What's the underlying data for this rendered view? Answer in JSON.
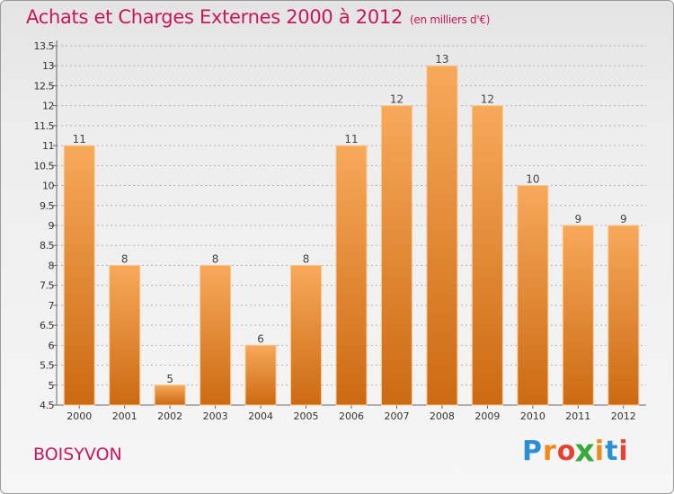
{
  "chart_data": {
    "type": "bar",
    "title": "Achats et Charges Externes 2000 à 2012",
    "subtitle": "(en milliers d'€)",
    "categories": [
      "2000",
      "2001",
      "2002",
      "2003",
      "2004",
      "2005",
      "2006",
      "2007",
      "2008",
      "2009",
      "2010",
      "2011",
      "2012"
    ],
    "values": [
      11,
      8,
      5,
      8,
      6,
      8,
      11,
      12,
      13,
      12,
      10,
      9,
      9
    ],
    "data_labels": [
      "11",
      "8",
      "5",
      "8",
      "6",
      "8",
      "11",
      "12",
      "13",
      "12",
      "10",
      "9",
      "9"
    ],
    "ylim": [
      4.5,
      13.5
    ],
    "y_ticks": [
      4.5,
      5,
      5.5,
      6,
      6.5,
      7,
      7.5,
      8,
      8.5,
      9,
      9.5,
      10,
      10.5,
      11,
      11.5,
      12,
      12.5,
      13,
      13.5
    ],
    "y_tick_labels": [
      "4.5",
      "5",
      "5.5",
      "6",
      "6.5",
      "7",
      "7.5",
      "8",
      "8.5",
      "9",
      "9.5",
      "10",
      "10.5",
      "11",
      "11.5",
      "12",
      "12.5",
      "13",
      "13.5"
    ],
    "grid": "horizontal dotted",
    "legend": "none",
    "colors": {
      "bar_top": "#f7a95a",
      "bar_bottom": "#cc6a12",
      "title": "#c8165a",
      "grid": "#b3b3b3"
    }
  },
  "footer": {
    "commune": "BOISYVON",
    "logo_letters": [
      "P",
      "r",
      "o",
      "x",
      "i",
      "t",
      "i"
    ],
    "logo_colors": [
      "#2b8fd6",
      "#f08a1c",
      "#e8422e",
      "#3aa83a",
      "#f08a1c",
      "#2b8fd6",
      "#e8422e"
    ]
  }
}
